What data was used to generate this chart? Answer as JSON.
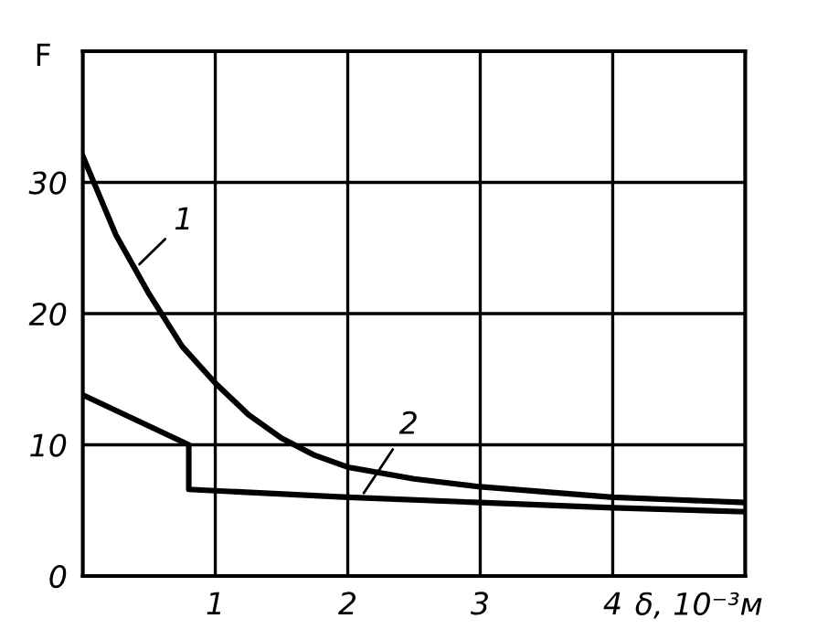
{
  "chart_data": {
    "type": "line",
    "ylabel": "F",
    "xlabel": "δ, 10⁻³м",
    "xlim": [
      0,
      5
    ],
    "ylim": [
      0,
      40
    ],
    "xticks": [
      1,
      2,
      3,
      4
    ],
    "yticks": [
      0,
      10,
      20,
      30
    ],
    "grid": true,
    "marker": "none",
    "line_style": "solid",
    "series": [
      {
        "color": "#000000",
        "x": [
          0,
          0.25,
          0.5,
          0.75,
          1,
          1.25,
          1.5,
          1.75,
          2,
          2.5,
          3,
          3.5,
          4,
          4.5,
          5
        ],
        "values": [
          32,
          26,
          21.5,
          17.5,
          14.7,
          12.3,
          10.5,
          9.2,
          8.3,
          7.4,
          6.8,
          6.4,
          6,
          5.8,
          5.6
        ]
      },
      {
        "color": "#000000",
        "x": [
          0,
          0.8,
          0.8,
          1,
          2,
          3,
          4,
          5
        ],
        "values": [
          13.8,
          10,
          6.6,
          6.5,
          6,
          5.6,
          5.2,
          4.9
        ]
      }
    ],
    "annotations": [
      {
        "text": "1",
        "x": 0.4,
        "y": 23.5
      },
      {
        "text": "2",
        "x": 2.1,
        "y": 6
      }
    ]
  }
}
